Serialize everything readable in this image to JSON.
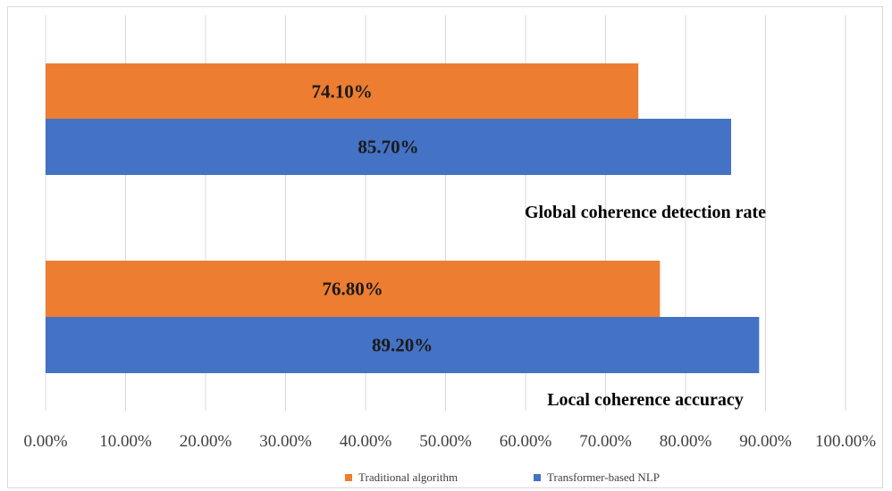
{
  "chart_data": {
    "type": "bar",
    "orientation": "horizontal",
    "categories": [
      "Global coherence detection rate",
      "Local coherence accuracy"
    ],
    "series": [
      {
        "name": "Traditional algorithm",
        "color": "#ED7D31",
        "values": [
          74.1,
          76.8
        ],
        "labels": [
          "74.10%",
          "76.80%"
        ]
      },
      {
        "name": "Transformer-based NLP",
        "color": "#4472C4",
        "values": [
          85.7,
          89.2
        ],
        "labels": [
          "85.70%",
          "89.20%"
        ]
      }
    ],
    "xlim": [
      0,
      100
    ],
    "xticks": [
      0,
      10,
      20,
      30,
      40,
      50,
      60,
      70,
      80,
      90,
      100
    ],
    "xtick_labels": [
      "0.00%",
      "10.00%",
      "20.00%",
      "30.00%",
      "40.00%",
      "50.00%",
      "60.00%",
      "70.00%",
      "80.00%",
      "90.00%",
      "100.00%"
    ],
    "grid": true,
    "legend_position": "bottom",
    "title": "",
    "xlabel": "",
    "ylabel": ""
  }
}
